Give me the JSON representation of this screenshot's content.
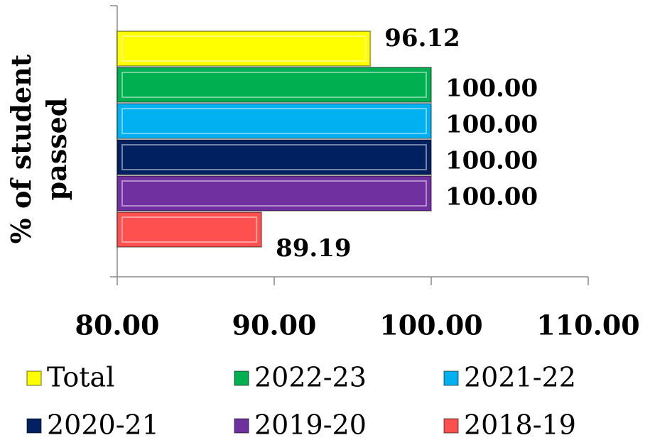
{
  "chart_data": {
    "type": "bar",
    "orientation": "horizontal",
    "y_label": "% of student passed",
    "xlim": [
      80,
      110
    ],
    "xticks": [
      {
        "value": 80,
        "label": "80.00"
      },
      {
        "value": 90,
        "label": "90.00"
      },
      {
        "value": 100,
        "label": "100.00"
      },
      {
        "value": 110,
        "label": "110.00"
      }
    ],
    "series": [
      {
        "name": "Total",
        "color": "#ffff00",
        "values": [
          96.12
        ],
        "value_labels": [
          "96.12"
        ]
      },
      {
        "name": "2022-23",
        "color": "#00b050",
        "values": [
          100
        ],
        "value_labels": [
          "100.00"
        ]
      },
      {
        "name": "2021-22",
        "color": "#00b0f0",
        "values": [
          100
        ],
        "value_labels": [
          "100.00"
        ]
      },
      {
        "name": "2020-21",
        "color": "#002060",
        "values": [
          100
        ],
        "value_labels": [
          "100.00"
        ]
      },
      {
        "name": "2019-20",
        "color": "#7030a0",
        "values": [
          100
        ],
        "value_labels": [
          "100.00"
        ]
      },
      {
        "name": "2018-19",
        "color": "#ff5050",
        "values": [
          89.19
        ],
        "value_labels": [
          "89.19"
        ]
      }
    ]
  }
}
